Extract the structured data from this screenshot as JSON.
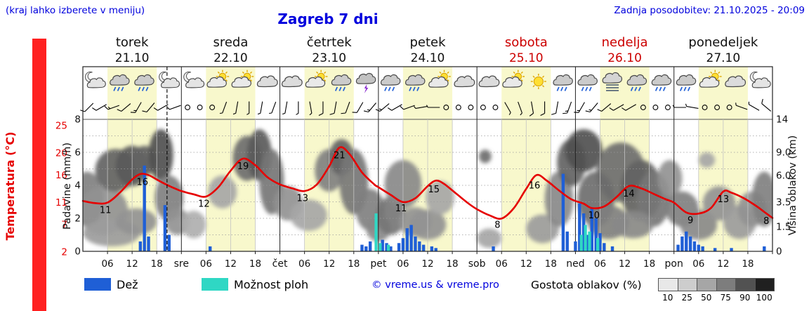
{
  "header": {
    "hint": "(kraj lahko izberete v meniju)",
    "title": "Zagreb 7 dni",
    "updated": "Zadnja posodobitev: 21.10.2025 - 20:09"
  },
  "axes": {
    "temp_label": "Temperatura (°C)",
    "precip_label": "Padavine (mm/h)",
    "cloud_label": "Višina oblakov (km)",
    "temp_ticks": [
      25,
      20,
      16,
      11,
      7,
      2
    ],
    "precip_ticks": [
      0,
      2,
      4,
      6,
      8
    ],
    "cloud_ticks": [
      [
        "0",
        0
      ],
      [
        "1.5",
        1.5
      ],
      [
        "3.5",
        3.5
      ],
      [
        "6.0",
        6
      ],
      [
        "9.0",
        9
      ],
      [
        "14",
        14
      ]
    ],
    "hour_ticks": [
      "06",
      "12",
      "18"
    ],
    "day_abbrevs": [
      "sre",
      "čet",
      "pet",
      "sob",
      "ned",
      "pon"
    ]
  },
  "days": [
    {
      "name": "torek",
      "date": "21.10",
      "highlight": false
    },
    {
      "name": "sreda",
      "date": "22.10",
      "highlight": false
    },
    {
      "name": "četrtek",
      "date": "23.10",
      "highlight": false
    },
    {
      "name": "petek",
      "date": "24.10",
      "highlight": false
    },
    {
      "name": "sobota",
      "date": "25.10",
      "highlight": true
    },
    {
      "name": "nedelja",
      "date": "26.10",
      "highlight": true
    },
    {
      "name": "ponedeljek",
      "date": "27.10",
      "highlight": false
    }
  ],
  "legend": {
    "rain_label": "Dež",
    "showers_label": "Možnost ploh",
    "copyright": "© vreme.us & vreme.pro",
    "clouds_label": "Gostota oblakov (%)",
    "cloud_scale": [
      "10",
      "25",
      "50",
      "75",
      "90",
      "100"
    ],
    "cloud_scale_colors": [
      "#e8e8e8",
      "#cdcdcd",
      "#a6a6a6",
      "#7d7d7d",
      "#525252",
      "#202020"
    ]
  },
  "colors": {
    "header_blue": "#0000dd",
    "temp_red": "#e60000",
    "rain_blue": "#1f5fd6",
    "shower_cyan": "#2fd7c4",
    "day_band_yellow": "#f8f8cc",
    "weekend_red": "#cc0000",
    "left_strip_red": "#ff2020",
    "text_black": "#111111"
  },
  "chart_data": {
    "type": "meteogram",
    "x_unit": "hours_from_2025-10-21T00:00",
    "x_range": [
      0,
      168
    ],
    "current_time_hours": 20.5,
    "temperature": {
      "unit": "°C",
      "axis_ticks": [
        2,
        7,
        11,
        16,
        20,
        25
      ],
      "points": [
        [
          0,
          11.3
        ],
        [
          3,
          10.9
        ],
        [
          6,
          11.0
        ],
        [
          9,
          12.8
        ],
        [
          12,
          15.2
        ],
        [
          14,
          16.2
        ],
        [
          16,
          16.0
        ],
        [
          18,
          15.2
        ],
        [
          20,
          14.4
        ],
        [
          22,
          13.7
        ],
        [
          24,
          13.1
        ],
        [
          27,
          12.5
        ],
        [
          30,
          12.1
        ],
        [
          33,
          13.8
        ],
        [
          36,
          16.8
        ],
        [
          39,
          19.0
        ],
        [
          42,
          17.8
        ],
        [
          45,
          15.6
        ],
        [
          48,
          14.3
        ],
        [
          51,
          13.6
        ],
        [
          54,
          13.1
        ],
        [
          57,
          14.3
        ],
        [
          60,
          17.6
        ],
        [
          62.5,
          21.0
        ],
        [
          65,
          19.8
        ],
        [
          68,
          16.5
        ],
        [
          71,
          14.3
        ],
        [
          72,
          13.8
        ],
        [
          75,
          12.4
        ],
        [
          78,
          11.1
        ],
        [
          81,
          11.8
        ],
        [
          84,
          14.0
        ],
        [
          86,
          15.0
        ],
        [
          88,
          14.4
        ],
        [
          91,
          12.6
        ],
        [
          94,
          10.8
        ],
        [
          96,
          9.8
        ],
        [
          99,
          8.7
        ],
        [
          102,
          8.1
        ],
        [
          105,
          10.0
        ],
        [
          108,
          13.5
        ],
        [
          110.5,
          16.0
        ],
        [
          113,
          15.0
        ],
        [
          116,
          13.2
        ],
        [
          119,
          11.6
        ],
        [
          122,
          10.8
        ],
        [
          124,
          10.0
        ],
        [
          127,
          10.3
        ],
        [
          130,
          12.0
        ],
        [
          133,
          14.0
        ],
        [
          136,
          13.6
        ],
        [
          139,
          12.6
        ],
        [
          142,
          11.6
        ],
        [
          144,
          11.0
        ],
        [
          147,
          9.2
        ],
        [
          150,
          9.0
        ],
        [
          153,
          10.0
        ],
        [
          156,
          13.0
        ],
        [
          158,
          12.8
        ],
        [
          161,
          11.8
        ],
        [
          164,
          10.4
        ],
        [
          166,
          9.3
        ],
        [
          168,
          8.2
        ]
      ]
    },
    "temperature_labels": [
      [
        5.5,
        "11"
      ],
      [
        14.5,
        "16"
      ],
      [
        29.5,
        "12"
      ],
      [
        39,
        "19"
      ],
      [
        53.5,
        "13"
      ],
      [
        62.5,
        "21"
      ],
      [
        77.5,
        "11"
      ],
      [
        85.5,
        "15"
      ],
      [
        101,
        "8"
      ],
      [
        110,
        "16"
      ],
      [
        124.5,
        "10"
      ],
      [
        133,
        "14"
      ],
      [
        148,
        "9"
      ],
      [
        156,
        "13"
      ],
      [
        166.5,
        "8"
      ]
    ],
    "precipitation": {
      "unit": "mm/h",
      "axis_max": 8,
      "rain": [
        [
          14,
          0.6
        ],
        [
          15,
          5.2
        ],
        [
          16,
          0.9
        ],
        [
          20,
          2.8
        ],
        [
          21,
          1.0
        ],
        [
          31,
          0.3
        ],
        [
          68,
          0.4
        ],
        [
          69,
          0.3
        ],
        [
          70,
          0.6
        ],
        [
          73,
          0.7
        ],
        [
          74,
          0.5
        ],
        [
          75,
          0.3
        ],
        [
          77,
          0.5
        ],
        [
          78,
          0.8
        ],
        [
          79,
          1.4
        ],
        [
          80,
          1.6
        ],
        [
          81,
          0.9
        ],
        [
          82,
          0.6
        ],
        [
          83,
          0.4
        ],
        [
          85,
          0.3
        ],
        [
          86,
          0.2
        ],
        [
          100,
          0.3
        ],
        [
          117,
          4.7
        ],
        [
          118,
          1.2
        ],
        [
          120,
          0.6
        ],
        [
          121,
          2.9
        ],
        [
          122,
          2.3
        ],
        [
          123,
          1.0
        ],
        [
          124,
          2.6
        ],
        [
          125,
          2.0
        ],
        [
          126,
          1.1
        ],
        [
          127,
          0.5
        ],
        [
          129,
          0.3
        ],
        [
          145,
          0.4
        ],
        [
          146,
          0.9
        ],
        [
          147,
          1.2
        ],
        [
          148,
          0.9
        ],
        [
          149,
          0.6
        ],
        [
          150,
          0.4
        ],
        [
          151,
          0.3
        ],
        [
          154,
          0.2
        ],
        [
          158,
          0.2
        ],
        [
          166,
          0.3
        ]
      ],
      "showers": [
        [
          71,
          2.3
        ],
        [
          72,
          0.5
        ],
        [
          74,
          0.4
        ],
        [
          121,
          1.0
        ],
        [
          122,
          1.6
        ],
        [
          123,
          1.2
        ],
        [
          125,
          0.8
        ]
      ]
    },
    "cloud_height_km_ticks": [
      0,
      1.5,
      3.5,
      6,
      9,
      14
    ],
    "clouds": [
      [
        1,
        4,
        8,
        5,
        55
      ],
      [
        5,
        3,
        12,
        4,
        45
      ],
      [
        8,
        7,
        10,
        5,
        70
      ],
      [
        12,
        7.5,
        8,
        5,
        75
      ],
      [
        15,
        8,
        6,
        4,
        70
      ],
      [
        7,
        1.2,
        14,
        1.8,
        40
      ],
      [
        13,
        2,
        10,
        2,
        45
      ],
      [
        19,
        9,
        6,
        7,
        80
      ],
      [
        21,
        4,
        7,
        4,
        55
      ],
      [
        23,
        2,
        6,
        2,
        45
      ],
      [
        27,
        1.8,
        6,
        2,
        30
      ],
      [
        34,
        4.5,
        7,
        3,
        35
      ],
      [
        40,
        8.5,
        7,
        6,
        65
      ],
      [
        43,
        9,
        6,
        7,
        75
      ],
      [
        46,
        6,
        6,
        7,
        60
      ],
      [
        50,
        3.5,
        7,
        3,
        45
      ],
      [
        55,
        2.5,
        9,
        2.5,
        35
      ],
      [
        60,
        7,
        7,
        5,
        55
      ],
      [
        63,
        8.5,
        6,
        5,
        70
      ],
      [
        66,
        6,
        7,
        7,
        60
      ],
      [
        70,
        3,
        7,
        3.5,
        55
      ],
      [
        72,
        1.5,
        6,
        1.8,
        50
      ],
      [
        75,
        2.5,
        7,
        3,
        60
      ],
      [
        78,
        5.5,
        9,
        5,
        50
      ],
      [
        81,
        2,
        8,
        2.2,
        45
      ],
      [
        84,
        1.8,
        9,
        2.2,
        45
      ],
      [
        87,
        4,
        7,
        3,
        35
      ],
      [
        98,
        8.5,
        3,
        1.8,
        65
      ],
      [
        99,
        0.8,
        6,
        1.2,
        35
      ],
      [
        112,
        1.5,
        8,
        2,
        40
      ],
      [
        116,
        4,
        7,
        5,
        50
      ],
      [
        119,
        8,
        7,
        6,
        70
      ],
      [
        122,
        9.5,
        9,
        6,
        80
      ],
      [
        125,
        4,
        9,
        5,
        65
      ],
      [
        128,
        2,
        10,
        2.5,
        55
      ],
      [
        131,
        7,
        12,
        7,
        65
      ],
      [
        136,
        5,
        10,
        6,
        70
      ],
      [
        139,
        4,
        8,
        5,
        60
      ],
      [
        134,
        1.8,
        10,
        2,
        50
      ],
      [
        143,
        6,
        6,
        4,
        45
      ],
      [
        146,
        3,
        8,
        3,
        55
      ],
      [
        150,
        1.8,
        9,
        2.2,
        50
      ],
      [
        155,
        3.5,
        8,
        3,
        45
      ],
      [
        160,
        2,
        8,
        2.5,
        40
      ],
      [
        163,
        3,
        7,
        3,
        45
      ],
      [
        166,
        4,
        6,
        5,
        55
      ],
      [
        152,
        8,
        4,
        2,
        35
      ]
    ],
    "weather_icons": {
      "step_hours": 6,
      "start_hour": 3,
      "types": [
        "moon-cloud",
        "cloud-rain",
        "cloud-rain",
        "moon-cloud",
        "moon-cloud",
        "sun-cloud",
        "sun-cloud",
        "cloud",
        "cloud",
        "sun-cloud",
        "cloud-rain",
        "storm",
        "cloud-rain",
        "cloud-rain",
        "sun-cloud",
        "cloud",
        "cloud",
        "sun-cloud",
        "sun",
        "cloud-rain",
        "cloud-rain",
        "cloud-fog",
        "cloud-rain",
        "cloud-rain",
        "cloud-rain",
        "sun-cloud",
        "cloud",
        "moon-cloud"
      ]
    },
    "wind_barbs": {
      "step_hours": 3,
      "start_hour": 1.5,
      "dir_speed": [
        [
          225,
          10
        ],
        [
          240,
          10
        ],
        [
          250,
          15
        ],
        [
          230,
          10
        ],
        [
          210,
          15
        ],
        [
          220,
          10
        ],
        [
          240,
          10
        ],
        [
          250,
          5
        ],
        [
          0,
          0
        ],
        [
          0,
          0
        ],
        [
          0,
          0
        ],
        [
          200,
          5
        ],
        [
          190,
          5
        ],
        [
          180,
          5
        ],
        [
          190,
          5
        ],
        [
          200,
          5
        ],
        [
          190,
          5
        ],
        [
          180,
          5
        ],
        [
          170,
          5
        ],
        [
          180,
          10
        ],
        [
          190,
          10
        ],
        [
          200,
          10
        ],
        [
          210,
          10
        ],
        [
          220,
          15
        ],
        [
          230,
          15
        ],
        [
          240,
          10
        ],
        [
          250,
          10
        ],
        [
          260,
          5
        ],
        [
          270,
          5
        ],
        [
          0,
          0
        ],
        [
          0,
          0
        ],
        [
          0,
          0
        ],
        [
          0,
          0
        ],
        [
          0,
          0
        ],
        [
          150,
          5
        ],
        [
          160,
          5
        ],
        [
          170,
          10
        ],
        [
          180,
          10
        ],
        [
          190,
          10
        ],
        [
          200,
          15
        ],
        [
          210,
          15
        ],
        [
          220,
          15
        ],
        [
          230,
          10
        ],
        [
          240,
          10
        ],
        [
          240,
          10
        ],
        [
          0,
          0
        ],
        [
          0,
          0
        ],
        [
          0,
          0
        ],
        [
          270,
          5
        ],
        [
          280,
          5
        ],
        [
          0,
          0
        ],
        [
          0,
          0
        ],
        [
          0,
          0
        ],
        [
          290,
          5
        ],
        [
          300,
          5
        ],
        [
          310,
          10
        ]
      ]
    }
  }
}
